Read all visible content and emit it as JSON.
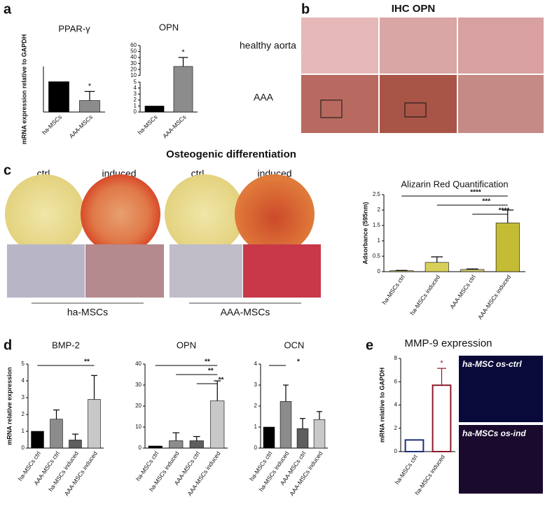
{
  "panels": {
    "a": "a",
    "b": "b",
    "c": "c",
    "d": "d",
    "e": "e"
  },
  "ihc": {
    "title": "IHC OPN",
    "rows": [
      "healthy aorta",
      "AAA"
    ]
  },
  "osteo": {
    "title": "Osteogenic differentiation",
    "columns": [
      "ctrl",
      "induced",
      "ctrl",
      "induced"
    ],
    "groups": [
      "ha-MSCs",
      "AAA-MSCs"
    ]
  },
  "mmp9": {
    "title": "MMP-9 expression",
    "images": [
      "ha-MSC os-ctrl",
      "ha-MSCs os-ind"
    ]
  },
  "chart_data": [
    {
      "type": "bar",
      "title": "PPAR-γ",
      "ylabel": "mRNA expression relative to GAPDH",
      "categories": [
        "ha-MSCs",
        "AAA-MSCs"
      ],
      "values": [
        1,
        0.38
      ],
      "errors": [
        0,
        0.3
      ],
      "colors": [
        "#000000",
        "#8c8c8c"
      ],
      "ylim": [
        0,
        1.5
      ],
      "annotations": [
        {
          "text": "*",
          "from": 1,
          "to": 1
        }
      ]
    },
    {
      "type": "bar",
      "title": "OPN",
      "categories": [
        "ha-MSCs",
        "AAA-MSCs"
      ],
      "values": [
        1,
        25
      ],
      "errors": [
        0,
        15
      ],
      "colors": [
        "#000000",
        "#8c8c8c"
      ],
      "ylim": [
        0,
        60
      ],
      "ybreak": [
        5,
        10
      ],
      "yticks": [
        0,
        1,
        2,
        3,
        4,
        5,
        10,
        20,
        30,
        40,
        50,
        60
      ],
      "annotations": [
        {
          "text": "*",
          "from": 1,
          "to": 1
        }
      ]
    },
    {
      "type": "bar",
      "title": "Alizarin Red Quantification",
      "ylabel": "Adsorbance (595nm)",
      "categories": [
        "ha-MSCs ctrl",
        "ha-MSCs induced",
        "AAA-MSCs ctrl",
        "AAA-MSCs induced"
      ],
      "values": [
        0.03,
        0.3,
        0.07,
        1.58
      ],
      "errors": [
        0.01,
        0.18,
        0.02,
        0.42
      ],
      "colors": [
        "#cfc870",
        "#d6d05a",
        "#cfc870",
        "#c4bc35"
      ],
      "ylim": [
        0,
        2.5
      ],
      "yticks": [
        0,
        0.5,
        1,
        1.5,
        2,
        2.5
      ],
      "annotations": [
        {
          "text": "****",
          "from": 0,
          "to": 3
        },
        {
          "text": "***",
          "from": 1,
          "to": 3
        },
        {
          "text": "****",
          "from": 2,
          "to": 3
        }
      ]
    },
    {
      "type": "bar",
      "title": "BMP-2",
      "ylabel": "mRNA relative expression",
      "categories": [
        "ha-MSCs ctrl",
        "AAA-MSCs ctrl",
        "ha-MSCs induced",
        "AAA-MSCs induced"
      ],
      "values": [
        1,
        1.72,
        0.48,
        2.9
      ],
      "errors": [
        0,
        0.55,
        0.35,
        1.42
      ],
      "colors": [
        "#000000",
        "#8c8c8c",
        "#5e5e5e",
        "#c8c8c8"
      ],
      "ylim": [
        0,
        5
      ],
      "yticks": [
        0,
        1,
        2,
        3,
        4,
        5
      ],
      "annotations": [
        {
          "text": "**",
          "from": 0,
          "to": 3
        }
      ]
    },
    {
      "type": "bar",
      "title": "OPN",
      "categories": [
        "ha-MSCs ctrl",
        "ha-MSCs induced",
        "AAA-MSCs ctrl",
        "AAA-MSCs induced"
      ],
      "values": [
        1,
        3.5,
        3.5,
        22.5
      ],
      "errors": [
        0,
        3.8,
        2,
        9.5
      ],
      "colors": [
        "#000000",
        "#8c8c8c",
        "#5e5e5e",
        "#c8c8c8"
      ],
      "ylim": [
        0,
        40
      ],
      "yticks": [
        0,
        10,
        20,
        30,
        40
      ],
      "annotations": [
        {
          "text": "**",
          "from": 0,
          "to": 3
        },
        {
          "text": "**",
          "from": 1,
          "to": 3
        },
        {
          "text": "**",
          "from": 2,
          "to": 3
        }
      ]
    },
    {
      "type": "bar",
      "title": "OCN",
      "categories": [
        "ha-MSCs ctrl",
        "ha-MSCs induced",
        "AAA-MSCs ctrl",
        "AAA-MSCs induced"
      ],
      "values": [
        1,
        2.22,
        0.93,
        1.36
      ],
      "errors": [
        0,
        0.78,
        0.48,
        0.38
      ],
      "colors": [
        "#000000",
        "#8c8c8c",
        "#5e5e5e",
        "#c8c8c8"
      ],
      "ylim": [
        0,
        4
      ],
      "yticks": [
        0,
        1,
        2,
        3,
        4
      ],
      "annotations": [
        {
          "text": "*",
          "from": 0,
          "to": 1
        }
      ]
    },
    {
      "type": "bar",
      "ylabel": "mRNA relative to GAPDH",
      "outline": true,
      "categories": [
        "ha-MSCs ctrl",
        "ha-MSCs induced"
      ],
      "values": [
        1,
        5.7
      ],
      "errors": [
        0,
        1.45
      ],
      "colors": [
        "#1f2f7a",
        "#8b1a2a"
      ],
      "ylim": [
        0,
        8
      ],
      "yticks": [
        0,
        2,
        4,
        6,
        8
      ],
      "annotations": [
        {
          "text": "*",
          "from": 1,
          "to": 1,
          "color": "#8b1a2a"
        }
      ]
    }
  ]
}
